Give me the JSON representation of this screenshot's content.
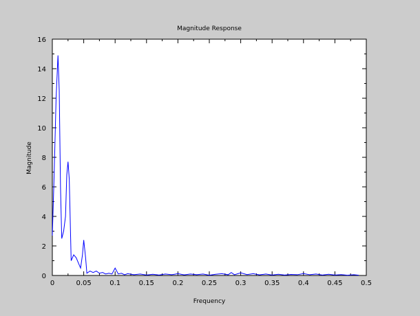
{
  "chart_data": {
    "type": "line",
    "title": "Magnitude Response",
    "xlabel": "Frequency",
    "ylabel": "Magnitude",
    "xlim": [
      0,
      0.5
    ],
    "ylim": [
      0,
      16
    ],
    "x_ticks": [
      "0",
      "0.05",
      "0.1",
      "0.15",
      "0.2",
      "0.25",
      "0.3",
      "0.35",
      "0.4",
      "0.45",
      "0.5"
    ],
    "y_ticks": [
      "0",
      "2",
      "4",
      "6",
      "8",
      "10",
      "12",
      "14",
      "16"
    ],
    "grid": false,
    "legend": "none",
    "series": [
      {
        "color": "#0000ff",
        "points": [
          [
            0.0,
            2.7
          ],
          [
            0.003,
            7.0
          ],
          [
            0.006,
            12.0
          ],
          [
            0.009,
            14.9
          ],
          [
            0.011,
            12.5
          ],
          [
            0.013,
            6.0
          ],
          [
            0.015,
            2.5
          ],
          [
            0.018,
            3.0
          ],
          [
            0.021,
            4.0
          ],
          [
            0.023,
            6.8
          ],
          [
            0.025,
            7.7
          ],
          [
            0.027,
            6.5
          ],
          [
            0.03,
            1.0
          ],
          [
            0.034,
            1.4
          ],
          [
            0.038,
            1.2
          ],
          [
            0.042,
            0.8
          ],
          [
            0.045,
            0.5
          ],
          [
            0.048,
            1.4
          ],
          [
            0.05,
            2.4
          ],
          [
            0.053,
            1.2
          ],
          [
            0.055,
            0.15
          ],
          [
            0.06,
            0.3
          ],
          [
            0.065,
            0.2
          ],
          [
            0.07,
            0.3
          ],
          [
            0.075,
            0.15
          ],
          [
            0.08,
            0.2
          ],
          [
            0.085,
            0.1
          ],
          [
            0.09,
            0.15
          ],
          [
            0.095,
            0.1
          ],
          [
            0.1,
            0.5
          ],
          [
            0.105,
            0.1
          ],
          [
            0.11,
            0.15
          ],
          [
            0.115,
            0.05
          ],
          [
            0.12,
            0.12
          ],
          [
            0.13,
            0.05
          ],
          [
            0.14,
            0.1
          ],
          [
            0.15,
            0.03
          ],
          [
            0.16,
            0.08
          ],
          [
            0.17,
            0.03
          ],
          [
            0.18,
            0.1
          ],
          [
            0.19,
            0.05
          ],
          [
            0.2,
            0.12
          ],
          [
            0.21,
            0.04
          ],
          [
            0.22,
            0.1
          ],
          [
            0.23,
            0.05
          ],
          [
            0.24,
            0.1
          ],
          [
            0.25,
            0.02
          ],
          [
            0.26,
            0.08
          ],
          [
            0.27,
            0.12
          ],
          [
            0.28,
            0.05
          ],
          [
            0.285,
            0.2
          ],
          [
            0.29,
            0.05
          ],
          [
            0.3,
            0.18
          ],
          [
            0.31,
            0.06
          ],
          [
            0.32,
            0.12
          ],
          [
            0.33,
            0.04
          ],
          [
            0.34,
            0.1
          ],
          [
            0.35,
            0.03
          ],
          [
            0.36,
            0.08
          ],
          [
            0.37,
            0.03
          ],
          [
            0.38,
            0.07
          ],
          [
            0.39,
            0.05
          ],
          [
            0.4,
            0.13
          ],
          [
            0.41,
            0.05
          ],
          [
            0.42,
            0.1
          ],
          [
            0.43,
            0.03
          ],
          [
            0.44,
            0.08
          ],
          [
            0.45,
            0.03
          ],
          [
            0.46,
            0.06
          ],
          [
            0.47,
            0.02
          ],
          [
            0.48,
            0.05
          ],
          [
            0.488,
            0.02
          ]
        ]
      }
    ]
  }
}
